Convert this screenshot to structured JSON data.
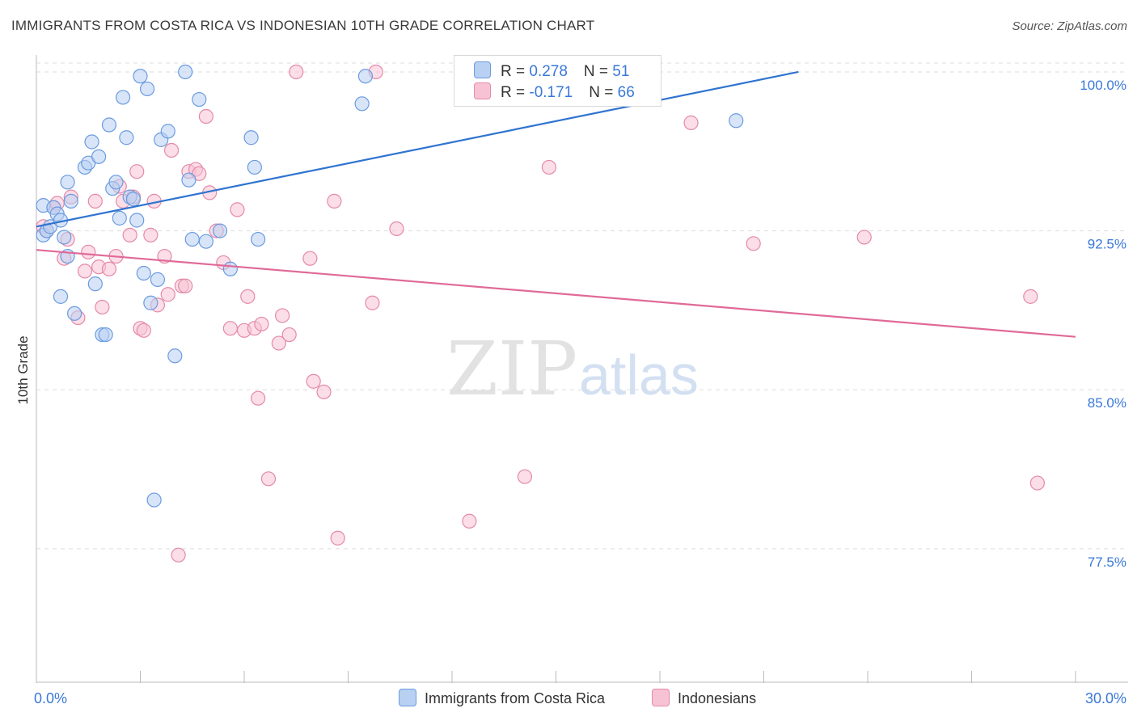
{
  "title": "IMMIGRANTS FROM COSTA RICA VS INDONESIAN 10TH GRADE CORRELATION CHART",
  "source": "Source: ZipAtlas.com",
  "watermark": {
    "zip": "ZIP",
    "atlas": "atlas"
  },
  "legend_top": {
    "rows": [
      {
        "r_label": "R = ",
        "r_value": "0.278",
        "n_label": "N = ",
        "n_value": "51"
      },
      {
        "r_label": "R = ",
        "r_value": "-0.171",
        "n_label": "N = ",
        "n_value": "66"
      }
    ]
  },
  "colors": {
    "blue_fill": "#b8d0f2",
    "blue_stroke": "#6a9be0",
    "blue_line": "#2f74d0",
    "pink_fill": "#f7c3d4",
    "pink_stroke": "#e48aa9",
    "pink_line": "#e06a98",
    "tick_label": "#3a78d8",
    "grid": "#dddddd"
  },
  "chart_data": {
    "type": "scatter",
    "title": "IMMIGRANTS FROM COSTA RICA VS INDONESIAN 10TH GRADE CORRELATION CHART",
    "xlabel": "",
    "ylabel": "10th Grade",
    "xlim": [
      0,
      30
    ],
    "ylim": [
      71.2,
      100.8
    ],
    "x_tick_labels": [
      "0.0%",
      "30.0%"
    ],
    "y_ticks": [
      77.5,
      85.0,
      92.5,
      100.0
    ],
    "y_tick_labels": [
      "77.5%",
      "85.0%",
      "92.5%",
      "100.0%"
    ],
    "grid": "horizontal dashed",
    "legend_position": "bottom",
    "series": [
      {
        "name": "Immigrants from Costa Rica",
        "r": 0.278,
        "n": 51,
        "trend": [
          [
            0.0,
            92.7
          ],
          [
            22.0,
            100.0
          ]
        ],
        "points": [
          [
            0.2,
            92.3
          ],
          [
            0.3,
            92.5
          ],
          [
            0.2,
            93.7
          ],
          [
            0.4,
            92.7
          ],
          [
            0.5,
            93.6
          ],
          [
            0.6,
            93.3
          ],
          [
            0.7,
            93.0
          ],
          [
            0.7,
            89.4
          ],
          [
            0.8,
            92.2
          ],
          [
            0.9,
            91.3
          ],
          [
            0.9,
            94.8
          ],
          [
            1.0,
            93.9
          ],
          [
            1.1,
            88.6
          ],
          [
            1.4,
            95.5
          ],
          [
            1.5,
            95.7
          ],
          [
            1.6,
            96.7
          ],
          [
            1.7,
            90.0
          ],
          [
            1.8,
            96.0
          ],
          [
            1.9,
            87.6
          ],
          [
            2.0,
            87.6
          ],
          [
            2.1,
            97.5
          ],
          [
            2.2,
            94.5
          ],
          [
            2.3,
            94.8
          ],
          [
            2.4,
            93.1
          ],
          [
            2.5,
            98.8
          ],
          [
            2.6,
            96.9
          ],
          [
            2.7,
            94.1
          ],
          [
            2.8,
            94.0
          ],
          [
            2.9,
            93.0
          ],
          [
            3.0,
            99.8
          ],
          [
            3.1,
            90.5
          ],
          [
            3.2,
            99.2
          ],
          [
            3.3,
            89.1
          ],
          [
            3.4,
            79.8
          ],
          [
            3.5,
            90.2
          ],
          [
            3.6,
            96.8
          ],
          [
            3.8,
            97.2
          ],
          [
            4.0,
            86.6
          ],
          [
            4.3,
            100.0
          ],
          [
            4.4,
            94.9
          ],
          [
            4.5,
            92.1
          ],
          [
            4.7,
            98.7
          ],
          [
            4.9,
            92.0
          ],
          [
            5.3,
            92.5
          ],
          [
            5.6,
            90.7
          ],
          [
            6.2,
            96.9
          ],
          [
            6.3,
            95.5
          ],
          [
            6.4,
            92.1
          ],
          [
            9.4,
            98.5
          ],
          [
            9.5,
            99.8
          ],
          [
            20.2,
            97.7
          ]
        ]
      },
      {
        "name": "Indonesians",
        "r": -0.171,
        "n": 66,
        "trend": [
          [
            0.0,
            91.6
          ],
          [
            30.0,
            87.5
          ]
        ],
        "points": [
          [
            0.2,
            92.7
          ],
          [
            0.3,
            92.5
          ],
          [
            0.5,
            93.6
          ],
          [
            0.6,
            93.8
          ],
          [
            0.8,
            91.2
          ],
          [
            0.9,
            92.1
          ],
          [
            1.0,
            94.1
          ],
          [
            1.2,
            88.4
          ],
          [
            1.4,
            90.6
          ],
          [
            1.5,
            91.5
          ],
          [
            1.7,
            93.9
          ],
          [
            1.8,
            90.8
          ],
          [
            1.9,
            88.9
          ],
          [
            2.1,
            90.7
          ],
          [
            2.3,
            91.3
          ],
          [
            2.4,
            94.6
          ],
          [
            2.5,
            93.9
          ],
          [
            2.7,
            92.3
          ],
          [
            2.8,
            94.1
          ],
          [
            2.9,
            95.3
          ],
          [
            3.0,
            87.9
          ],
          [
            3.1,
            87.8
          ],
          [
            3.3,
            92.3
          ],
          [
            3.4,
            93.9
          ],
          [
            3.5,
            89.0
          ],
          [
            3.7,
            91.3
          ],
          [
            3.8,
            89.5
          ],
          [
            3.9,
            96.3
          ],
          [
            4.1,
            77.2
          ],
          [
            4.2,
            89.9
          ],
          [
            4.3,
            89.9
          ],
          [
            4.4,
            95.3
          ],
          [
            4.6,
            95.4
          ],
          [
            4.7,
            95.2
          ],
          [
            4.9,
            97.9
          ],
          [
            5.0,
            94.3
          ],
          [
            5.2,
            92.5
          ],
          [
            5.4,
            91.0
          ],
          [
            5.6,
            87.9
          ],
          [
            5.8,
            93.5
          ],
          [
            6.0,
            87.8
          ],
          [
            6.1,
            89.4
          ],
          [
            6.3,
            87.9
          ],
          [
            6.4,
            84.6
          ],
          [
            6.5,
            88.1
          ],
          [
            6.7,
            80.8
          ],
          [
            7.0,
            87.2
          ],
          [
            7.1,
            88.5
          ],
          [
            7.3,
            87.6
          ],
          [
            7.5,
            100.0
          ],
          [
            7.9,
            91.2
          ],
          [
            8.0,
            85.4
          ],
          [
            8.3,
            84.9
          ],
          [
            8.6,
            93.9
          ],
          [
            8.7,
            78.0
          ],
          [
            9.8,
            100.0
          ],
          [
            9.7,
            89.1
          ],
          [
            10.4,
            92.6
          ],
          [
            12.5,
            78.8
          ],
          [
            14.1,
            80.9
          ],
          [
            14.8,
            95.5
          ],
          [
            18.9,
            97.6
          ],
          [
            20.7,
            91.9
          ],
          [
            23.9,
            92.2
          ],
          [
            28.7,
            89.4
          ],
          [
            28.9,
            80.6
          ]
        ]
      }
    ]
  }
}
